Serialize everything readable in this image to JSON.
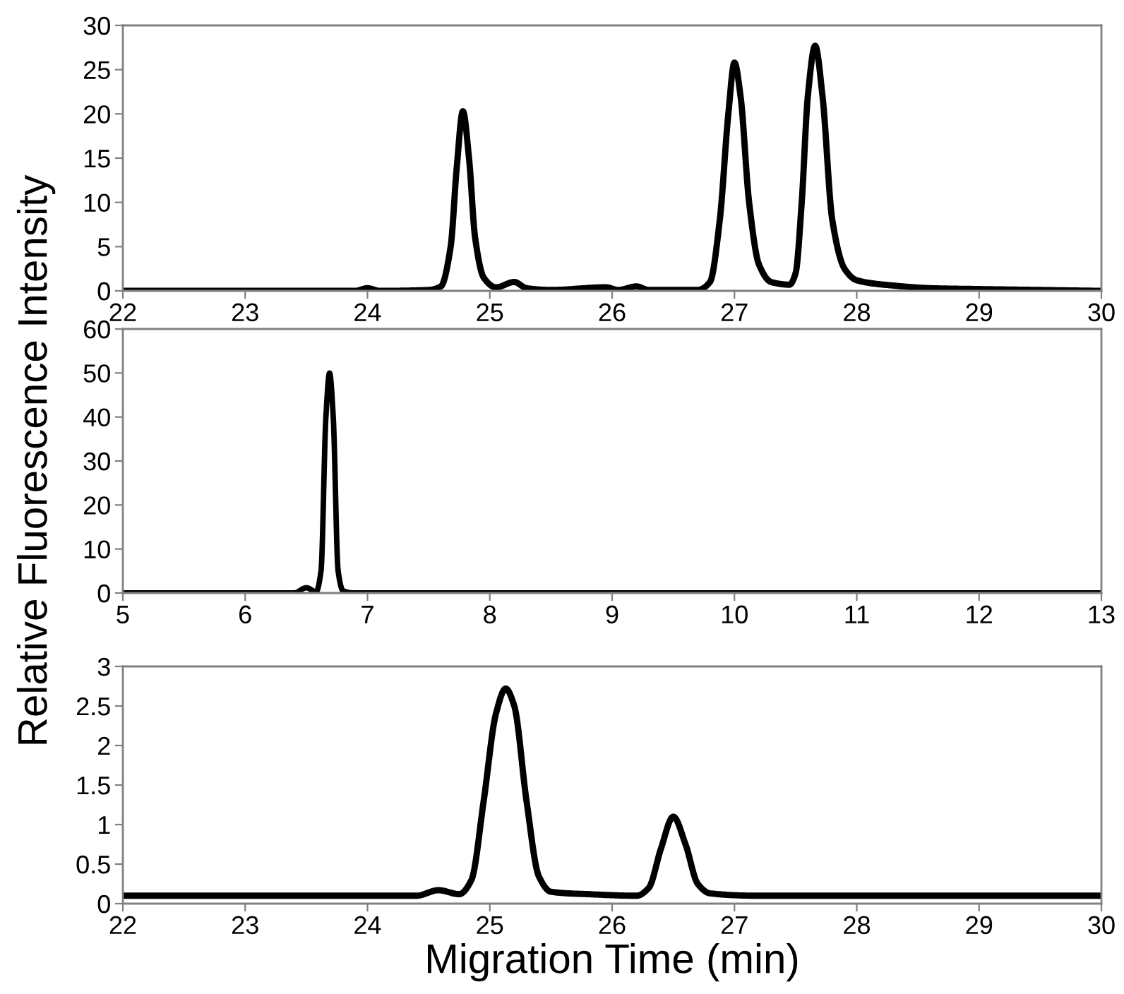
{
  "chart_data": [
    {
      "type": "line",
      "xlim": [
        22,
        30
      ],
      "xticks": [
        22,
        23,
        24,
        25,
        26,
        27,
        28,
        29,
        30
      ],
      "ylim": [
        0,
        30
      ],
      "yticks": [
        0,
        5,
        10,
        15,
        20,
        25,
        30
      ],
      "line_style": "solid",
      "series": [
        {
          "color": "#000000",
          "x": [
            22,
            23.9,
            24.0,
            24.1,
            24.5,
            24.6,
            24.68,
            24.73,
            24.78,
            24.83,
            24.88,
            24.95,
            25.05,
            25.2,
            25.3,
            25.5,
            25.95,
            26.05,
            26.2,
            26.3,
            26.7,
            26.8,
            26.88,
            26.95,
            27.0,
            27.05,
            27.12,
            27.2,
            27.3,
            27.45,
            27.5,
            27.55,
            27.6,
            27.66,
            27.72,
            27.8,
            27.9,
            28.0,
            28.3,
            28.6,
            29.0,
            30
          ],
          "values": [
            0,
            0,
            0.3,
            0,
            0.1,
            0.5,
            5,
            14,
            20.3,
            15,
            6,
            1.5,
            0.4,
            1.0,
            0.3,
            0.1,
            0.4,
            0.1,
            0.5,
            0.1,
            0.1,
            1,
            8,
            20,
            25.8,
            22,
            10,
            3,
            1,
            0.7,
            2,
            10,
            22,
            27.7,
            22,
            8,
            2.5,
            1.2,
            0.6,
            0.3,
            0.2,
            0
          ]
        }
      ]
    },
    {
      "type": "line",
      "ylabel": "Relative Fluorescence Intensity",
      "xlim": [
        5,
        13
      ],
      "xticks": [
        5,
        6,
        7,
        8,
        9,
        10,
        11,
        12,
        13
      ],
      "ylim": [
        0,
        60
      ],
      "yticks": [
        0,
        10,
        20,
        30,
        40,
        50,
        60
      ],
      "line_style": "solid",
      "series": [
        {
          "color": "#000000",
          "x": [
            5,
            6.4,
            6.5,
            6.58,
            6.62,
            6.66,
            6.69,
            6.72,
            6.76,
            6.8,
            6.9,
            13
          ],
          "values": [
            0,
            0,
            1.2,
            0.3,
            5,
            40,
            50,
            40,
            5,
            0.5,
            0,
            0
          ]
        }
      ]
    },
    {
      "type": "line",
      "xlabel": "Migration Time (min)",
      "xlim": [
        22,
        30
      ],
      "xticks": [
        22,
        23,
        24,
        25,
        26,
        27,
        28,
        29,
        30
      ],
      "ylim": [
        0,
        3
      ],
      "yticks": [
        0,
        0.5,
        1,
        1.5,
        2,
        2.5,
        3
      ],
      "line_style": "solid",
      "series": [
        {
          "color": "#000000",
          "x": [
            22,
            24.4,
            24.58,
            24.75,
            24.85,
            24.95,
            25.05,
            25.13,
            25.2,
            25.3,
            25.4,
            25.5,
            25.8,
            26.2,
            26.3,
            26.4,
            26.5,
            26.6,
            26.7,
            26.8,
            27.2,
            30
          ],
          "values": [
            0.1,
            0.1,
            0.17,
            0.12,
            0.3,
            1.3,
            2.4,
            2.72,
            2.5,
            1.3,
            0.35,
            0.15,
            0.12,
            0.1,
            0.2,
            0.7,
            1.1,
            0.75,
            0.25,
            0.13,
            0.1,
            0.1
          ]
        }
      ]
    }
  ]
}
